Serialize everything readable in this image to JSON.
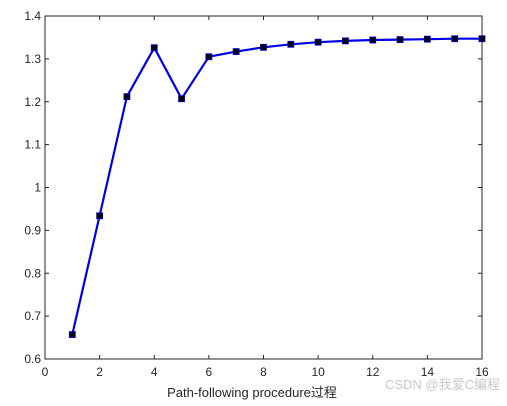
{
  "chart_data": {
    "type": "line",
    "title": "",
    "xlabel": "Path-following procedure过程",
    "ylabel": "",
    "xlim": [
      0,
      16
    ],
    "ylim": [
      0.6,
      1.4
    ],
    "x_ticks": [
      0,
      2,
      4,
      6,
      8,
      10,
      12,
      14,
      16
    ],
    "x_tick_labels": [
      "0",
      "2",
      "4",
      "6",
      "8",
      "10",
      "12",
      "14",
      "16"
    ],
    "y_ticks": [
      0.6,
      0.7,
      0.8,
      0.9,
      1.0,
      1.1,
      1.2,
      1.3,
      1.4
    ],
    "y_tick_labels": [
      "0.6",
      "0.7",
      "0.8",
      "0.9",
      "1",
      "1.1",
      "1.2",
      "1.3",
      "1.4"
    ],
    "grid": false,
    "legend": "none",
    "series": [
      {
        "line_color": "#0000e6",
        "marker_color": "#000000",
        "marker": "square",
        "x": [
          1,
          2,
          3,
          4,
          5,
          6,
          7,
          8,
          9,
          10,
          11,
          12,
          13,
          14,
          15,
          16
        ],
        "y": [
          0.657,
          0.934,
          1.212,
          1.326,
          1.207,
          1.305,
          1.317,
          1.327,
          1.334,
          1.339,
          1.342,
          1.344,
          1.345,
          1.346,
          1.347,
          1.347
        ]
      }
    ]
  },
  "watermark": "CSDN @我爱C编程"
}
